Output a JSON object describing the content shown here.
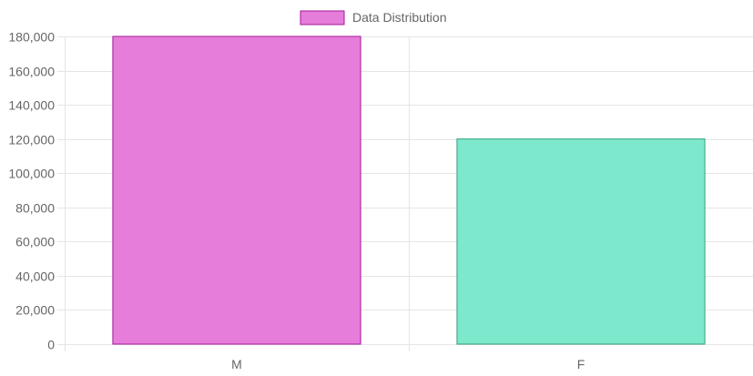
{
  "chart_data": {
    "type": "bar",
    "categories": [
      "M",
      "F"
    ],
    "series": [
      {
        "name": "Data Distribution",
        "values": [
          180000,
          120000
        ]
      }
    ],
    "bar_colors": [
      "#e77ddb",
      "#7de8cb"
    ],
    "bar_border_colors": [
      "#a0179a",
      "#2ea07f"
    ],
    "legend": {
      "label": "Data Distribution",
      "position": "top-center",
      "swatch_color": "#e77ddb",
      "swatch_border": "#a0179a"
    },
    "ylim": [
      0,
      180000
    ],
    "y_ticks": [
      "0",
      "20,000",
      "40,000",
      "60,000",
      "80,000",
      "100,000",
      "120,000",
      "140,000",
      "160,000",
      "180,000"
    ],
    "grid": true,
    "grid_color": "#e5e5e5",
    "title": "",
    "xlabel": "",
    "ylabel": ""
  }
}
